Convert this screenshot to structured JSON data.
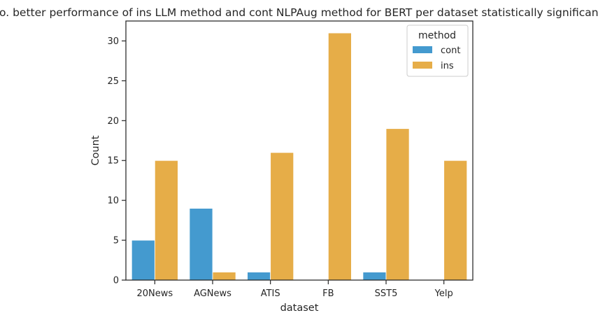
{
  "chart_data": {
    "type": "bar",
    "title": "No. better performance of ins LLM method and cont NLPAug method for BERT per dataset statistically significant.",
    "xlabel": "dataset",
    "ylabel": "Count",
    "categories": [
      "20News",
      "AGNews",
      "ATIS",
      "FB",
      "SST5",
      "Yelp"
    ],
    "series": [
      {
        "name": "cont",
        "color": "#3a95cc",
        "values": [
          5,
          9,
          1,
          0,
          1,
          0
        ]
      },
      {
        "name": "ins",
        "color": "#e5a93e",
        "values": [
          15,
          1,
          16,
          31,
          19,
          15
        ]
      }
    ],
    "ylim": [
      0,
      32.5
    ],
    "yticks": [
      0,
      5,
      10,
      15,
      20,
      25,
      30
    ],
    "legend": {
      "title": "method",
      "placement": "top-right"
    },
    "grid": false
  }
}
